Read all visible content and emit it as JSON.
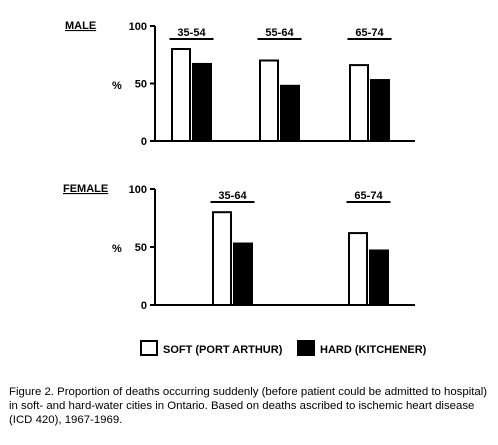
{
  "chart_data": [
    {
      "type": "bar",
      "panel_label": "MALE",
      "categories": [
        "35-54",
        "55-64",
        "65-74"
      ],
      "series": [
        {
          "name": "SOFT (PORT ARTHUR)",
          "values": [
            80,
            70,
            66
          ]
        },
        {
          "name": "HARD (KITCHENER)",
          "values": [
            67,
            48,
            53
          ]
        }
      ],
      "ylabel": "%",
      "ylim": [
        0,
        100
      ],
      "yticks": [
        "0",
        "50",
        "100"
      ],
      "grid": false
    },
    {
      "type": "bar",
      "panel_label": "FEMALE",
      "categories": [
        "35-64",
        "65-74"
      ],
      "series": [
        {
          "name": "SOFT (PORT ARTHUR)",
          "values": [
            80,
            62
          ]
        },
        {
          "name": "HARD (KITCHENER)",
          "values": [
            53,
            47
          ]
        }
      ],
      "ylabel": "%",
      "ylim": [
        0,
        100
      ],
      "yticks": [
        "0",
        "50",
        "100"
      ],
      "grid": false
    }
  ],
  "legend": {
    "placement": "bottom-center",
    "items": [
      {
        "label": "SOFT (PORT ARTHUR)",
        "fill": "#ffffff"
      },
      {
        "label": "HARD (KITCHENER)",
        "fill": "#000000"
      }
    ]
  },
  "caption": "Figure 2.  Proportion of deaths occurring suddenly (before patient could be admitted to hospital) in soft- and hard-water cities in Ontario.  Based on deaths ascribed to ischemic heart disease (ICD 420), 1967-1969.",
  "colors": {
    "soft_fill": "#ffffff",
    "hard_fill": "#000000",
    "stroke": "#000000"
  }
}
